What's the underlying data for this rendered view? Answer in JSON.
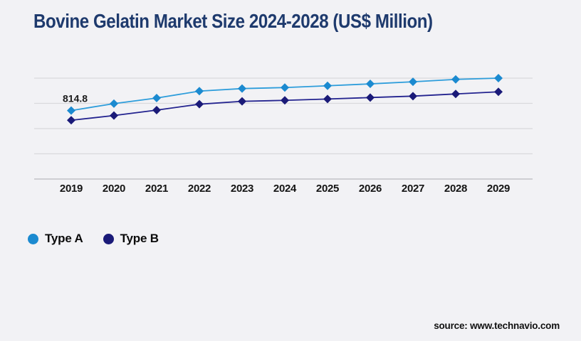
{
  "page": {
    "background": "#f2f2f5"
  },
  "header": {
    "title": "Bovine Gelatin Market Size 2024-2028 (US$ Million)",
    "title_color": "#1e3a6d"
  },
  "chart_data": {
    "type": "line",
    "title": "Bovine Gelatin Market Size 2024-2028 (US$ Million)",
    "categories": [
      "2019",
      "2020",
      "2021",
      "2022",
      "2023",
      "2024",
      "2025",
      "2026",
      "2027",
      "2028",
      "2029"
    ],
    "series": [
      {
        "name": "Type A",
        "line_color": "#2d9ddb",
        "marker_color": "#1b8ad0",
        "values": [
          814.8,
          897,
          963,
          1046,
          1076,
          1088,
          1109,
          1132,
          1157,
          1185,
          1200
        ]
      },
      {
        "name": "Type B",
        "line_color": "#23238f",
        "marker_color": "#1a1a78",
        "values": [
          699,
          755,
          820,
          890,
          924,
          936,
          952,
          969,
          986,
          1012,
          1037
        ]
      }
    ],
    "xlabel": "",
    "ylabel": "",
    "ylim": [
      0,
      1200
    ],
    "gridline_step": 300,
    "grid": "horizontal-only",
    "y_axis_labels_visible": false,
    "marker_shape": "diamond",
    "legend_position": "bottom-left",
    "annotations": [
      {
        "series": "Type A",
        "category": "2019",
        "text": "814.8"
      }
    ],
    "note": "values other than the 814.8 data label are estimated from gridlines"
  },
  "legend": {
    "items": [
      {
        "label": "Type A",
        "color": "#1b8ad0"
      },
      {
        "label": "Type B",
        "color": "#1a1a78"
      }
    ]
  },
  "footer": {
    "source_label": "source: www.technavio.com"
  },
  "colors": {
    "background": "#f2f2f5",
    "gridline": "#d9d9dc",
    "axis_line": "#c2c2c6",
    "tick_label": "#141414",
    "annotation": "#1c1c1c"
  }
}
